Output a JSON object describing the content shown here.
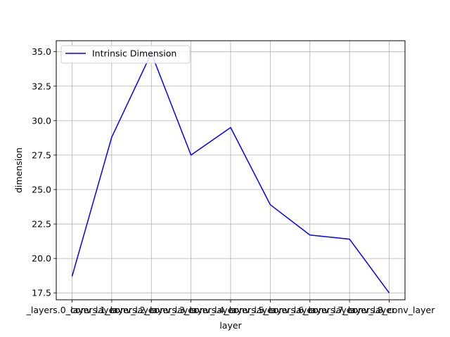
{
  "chart_data": {
    "type": "line",
    "title": "",
    "xlabel": "layer",
    "ylabel": "dimension",
    "categories": [
      "_layers.0_conv_layer",
      "_layers.1_conv_layer",
      "_layers.2_conv_layer",
      "_layers.3_conv_layer",
      "_layers.4_conv_layer",
      "_layers.5_conv_layer",
      "_layers.6_conv_layer",
      "_layers.7_conv_layer",
      "_layers.8_conv_layer"
    ],
    "series": [
      {
        "name": "Intrinsic Dimension",
        "color": "#0000ff",
        "values": [
          18.7,
          28.8,
          34.9,
          27.5,
          29.5,
          23.9,
          21.7,
          21.4,
          17.5
        ]
      }
    ],
    "ylim": [
      17.0,
      35.8
    ],
    "yticks": [
      "17.5",
      "20.0",
      "22.5",
      "25.0",
      "27.5",
      "30.0",
      "32.5",
      "35.0"
    ],
    "grid": true,
    "legend": "upper left"
  }
}
